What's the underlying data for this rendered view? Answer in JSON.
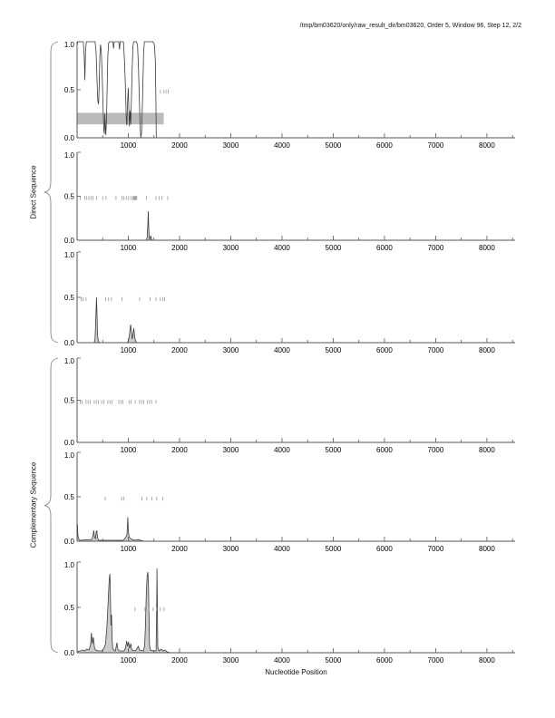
{
  "title": "/tmp/bm03620/only/raw_result_dir/bm03620, Order 5, Window 96, Step 12, 2/2",
  "chart_data": {
    "type": "line",
    "title": "/tmp/bm03620/only/raw_result_dir/bm03620, Order 5, Window 96, Step 12, 2/2",
    "xlabel": "Nucleotide Position",
    "xlim": [
      0,
      8550
    ],
    "ylim": [
      0,
      1
    ],
    "xticks_major": [
      1000,
      2000,
      3000,
      4000,
      5000,
      6000,
      7000,
      8000
    ],
    "xtick_minor_step": 500,
    "yticks": [
      {
        "v": 0.0,
        "label": "0.0"
      },
      {
        "v": 0.5,
        "label": "0.5"
      },
      {
        "v": 1.0,
        "label": "1.0"
      }
    ],
    "grid": false,
    "legend": "none",
    "colors": {
      "curve": "#3c3c3c",
      "hash": "#989898",
      "band": "#bababa",
      "axis": "#555555",
      "fill": "#cccccc",
      "text": "#000000"
    },
    "groups": [
      {
        "label": "Direct Sequence",
        "panels": [
          0,
          1,
          2
        ]
      },
      {
        "label": "Complementary Sequence",
        "panels": [
          3,
          4,
          5
        ]
      }
    ],
    "panels": [
      {
        "name": "direct-frame-1",
        "filled": false,
        "band": {
          "x_start": 0,
          "x_end": 1690,
          "y_low": 0.14,
          "y_high": 0.26
        },
        "hash_y": 0.48,
        "hash_marks": [
          1625,
          1695,
          1735,
          1780
        ],
        "curve": [
          [
            0,
            0.96
          ],
          [
            15,
            1.0
          ],
          [
            120,
            1.0
          ],
          [
            140,
            0.85
          ],
          [
            152,
            0.6
          ],
          [
            165,
            0.9
          ],
          [
            180,
            1.0
          ],
          [
            350,
            1.0
          ],
          [
            370,
            0.9
          ],
          [
            390,
            0.6
          ],
          [
            405,
            0.38
          ],
          [
            420,
            0.35
          ],
          [
            432,
            0.55
          ],
          [
            445,
            0.85
          ],
          [
            458,
            0.97
          ],
          [
            472,
            0.9
          ],
          [
            490,
            0.65
          ],
          [
            508,
            0.3
          ],
          [
            522,
            0.08
          ],
          [
            532,
            0.04
          ],
          [
            542,
            0.25
          ],
          [
            552,
            0.12
          ],
          [
            562,
            0.03
          ],
          [
            575,
            0.2
          ],
          [
            588,
            0.55
          ],
          [
            600,
            0.85
          ],
          [
            615,
            0.98
          ],
          [
            630,
            1.0
          ],
          [
            700,
            1.0
          ],
          [
            712,
            0.93
          ],
          [
            725,
            1.0
          ],
          [
            815,
            1.0
          ],
          [
            828,
            0.92
          ],
          [
            840,
            1.0
          ],
          [
            905,
            1.0
          ],
          [
            925,
            0.8
          ],
          [
            945,
            0.5
          ],
          [
            960,
            0.2
          ],
          [
            972,
            0.13
          ],
          [
            985,
            0.35
          ],
          [
            998,
            0.52
          ],
          [
            1010,
            0.3
          ],
          [
            1022,
            0.12
          ],
          [
            1035,
            0.28
          ],
          [
            1048,
            0.14
          ],
          [
            1060,
            0.4
          ],
          [
            1075,
            0.7
          ],
          [
            1090,
            0.95
          ],
          [
            1105,
            1.0
          ],
          [
            1160,
            1.0
          ],
          [
            1180,
            0.96
          ],
          [
            1200,
            0.7
          ],
          [
            1218,
            0.35
          ],
          [
            1232,
            0.1
          ],
          [
            1245,
            0.0
          ],
          [
            1258,
            0.05
          ],
          [
            1272,
            0.3
          ],
          [
            1288,
            0.65
          ],
          [
            1300,
            0.9
          ],
          [
            1315,
            1.0
          ],
          [
            1390,
            1.0
          ],
          [
            1480,
            1.0
          ],
          [
            1510,
            0.97
          ],
          [
            1528,
            0.8
          ],
          [
            1538,
            0.4
          ],
          [
            1544,
            0.1
          ],
          [
            1548,
            0.0
          ],
          [
            8550,
            0.0
          ]
        ]
      },
      {
        "name": "direct-frame-2",
        "filled": true,
        "band": null,
        "hash_y": 0.48,
        "hash_marks": [
          60,
          150,
          190,
          230,
          270,
          310,
          380,
          500,
          565,
          760,
          875,
          915,
          960,
          1005,
          1050,
          1090,
          1105,
          1120,
          1135,
          1150,
          1165,
          1355,
          1540,
          1600,
          1655,
          1770
        ],
        "curve": [
          [
            0,
            0
          ],
          [
            1355,
            0
          ],
          [
            1368,
            0.04
          ],
          [
            1380,
            0.18
          ],
          [
            1390,
            0.33
          ],
          [
            1398,
            0.15
          ],
          [
            1408,
            0.03
          ],
          [
            1420,
            0.01
          ],
          [
            1440,
            0.05
          ],
          [
            1455,
            0.01
          ],
          [
            1470,
            0
          ],
          [
            8550,
            0
          ]
        ]
      },
      {
        "name": "direct-frame-3",
        "filled": true,
        "band": null,
        "hash_y": 0.48,
        "hash_marks": [
          80,
          120,
          175,
          555,
          615,
          670,
          875,
          1220,
          1425,
          1540,
          1625,
          1670,
          1710
        ],
        "curve": [
          [
            0,
            0
          ],
          [
            335,
            0
          ],
          [
            350,
            0.04
          ],
          [
            365,
            0.25
          ],
          [
            378,
            0.5
          ],
          [
            388,
            0.35
          ],
          [
            398,
            0.1
          ],
          [
            410,
            0.03
          ],
          [
            425,
            0.01
          ],
          [
            440,
            0
          ],
          [
            985,
            0
          ],
          [
            1005,
            0.03
          ],
          [
            1025,
            0.1
          ],
          [
            1045,
            0.2
          ],
          [
            1060,
            0.13
          ],
          [
            1075,
            0.04
          ],
          [
            1090,
            0.09
          ],
          [
            1108,
            0.16
          ],
          [
            1122,
            0.07
          ],
          [
            1140,
            0.02
          ],
          [
            1160,
            0
          ],
          [
            8550,
            0
          ]
        ]
      },
      {
        "name": "complementary-frame-1",
        "filled": false,
        "band": null,
        "hash_y": 0.48,
        "hash_marks": [
          60,
          100,
          175,
          215,
          255,
          335,
          375,
          415,
          480,
          520,
          600,
          640,
          680,
          815,
          855,
          895,
          1015,
          1055,
          1135,
          1220,
          1260,
          1300,
          1375,
          1415,
          1455,
          1540
        ],
        "curve": [
          [
            0,
            0
          ],
          [
            8550,
            0
          ]
        ]
      },
      {
        "name": "complementary-frame-2",
        "filled": true,
        "band": null,
        "hash_y": 0.48,
        "hash_marks": [
          550,
          870,
          915,
          1265,
          1360,
          1460,
          1555,
          1670
        ],
        "curve": [
          [
            0,
            0.02
          ],
          [
            8,
            0.19
          ],
          [
            15,
            0.08
          ],
          [
            25,
            0.03
          ],
          [
            60,
            0.01
          ],
          [
            290,
            0.02
          ],
          [
            310,
            0.06
          ],
          [
            325,
            0.12
          ],
          [
            340,
            0.05
          ],
          [
            358,
            0.03
          ],
          [
            372,
            0.1
          ],
          [
            386,
            0.12
          ],
          [
            400,
            0.04
          ],
          [
            420,
            0.01
          ],
          [
            900,
            0.01
          ],
          [
            930,
            0.03
          ],
          [
            955,
            0.05
          ],
          [
            975,
            0.08
          ],
          [
            990,
            0.27
          ],
          [
            1000,
            0.12
          ],
          [
            1015,
            0.05
          ],
          [
            1045,
            0.03
          ],
          [
            1075,
            0.02
          ],
          [
            1110,
            0.01
          ],
          [
            1195,
            0.02
          ],
          [
            1240,
            0.01
          ],
          [
            1310,
            0
          ],
          [
            8550,
            0
          ]
        ]
      },
      {
        "name": "complementary-frame-3",
        "filled": true,
        "band": null,
        "hash_y": 0.48,
        "hash_marks": [
          1130,
          1325,
          1405,
          1485,
          1555,
          1625,
          1695
        ],
        "curve": [
          [
            0,
            0.01
          ],
          [
            60,
            0.02
          ],
          [
            110,
            0.03
          ],
          [
            150,
            0.02
          ],
          [
            190,
            0.04
          ],
          [
            230,
            0.03
          ],
          [
            262,
            0.08
          ],
          [
            280,
            0.22
          ],
          [
            298,
            0.1
          ],
          [
            318,
            0.17
          ],
          [
            338,
            0.06
          ],
          [
            360,
            0.03
          ],
          [
            420,
            0.02
          ],
          [
            480,
            0.02
          ],
          [
            525,
            0.05
          ],
          [
            555,
            0.1
          ],
          [
            585,
            0.3
          ],
          [
            610,
            0.62
          ],
          [
            628,
            0.82
          ],
          [
            640,
            0.87
          ],
          [
            652,
            0.6
          ],
          [
            662,
            0.3
          ],
          [
            672,
            0.42
          ],
          [
            684,
            0.15
          ],
          [
            695,
            0.05
          ],
          [
            715,
            0.03
          ],
          [
            745,
            0.02
          ],
          [
            762,
            0.06
          ],
          [
            778,
            0.11
          ],
          [
            795,
            0.04
          ],
          [
            830,
            0.02
          ],
          [
            915,
            0.02
          ],
          [
            945,
            0.05
          ],
          [
            968,
            0.13
          ],
          [
            985,
            0.07
          ],
          [
            1005,
            0.12
          ],
          [
            1025,
            0.05
          ],
          [
            1048,
            0.1
          ],
          [
            1070,
            0.03
          ],
          [
            1140,
            0.02
          ],
          [
            1195,
            0.07
          ],
          [
            1218,
            0.03
          ],
          [
            1295,
            0.02
          ],
          [
            1318,
            0.08
          ],
          [
            1335,
            0.3
          ],
          [
            1352,
            0.68
          ],
          [
            1368,
            0.85
          ],
          [
            1382,
            0.89
          ],
          [
            1395,
            0.72
          ],
          [
            1405,
            0.35
          ],
          [
            1415,
            0.08
          ],
          [
            1432,
            0.03
          ],
          [
            1500,
            0.02
          ],
          [
            1542,
            0.02
          ],
          [
            1552,
            0.45
          ],
          [
            1560,
            0.93
          ],
          [
            1568,
            0.45
          ],
          [
            1576,
            0.06
          ],
          [
            1598,
            0.02
          ],
          [
            1645,
            0.04
          ],
          [
            1678,
            0.02
          ],
          [
            1715,
            0.03
          ],
          [
            1755,
            0.01
          ],
          [
            1820,
            0
          ],
          [
            8550,
            0
          ]
        ]
      }
    ]
  }
}
